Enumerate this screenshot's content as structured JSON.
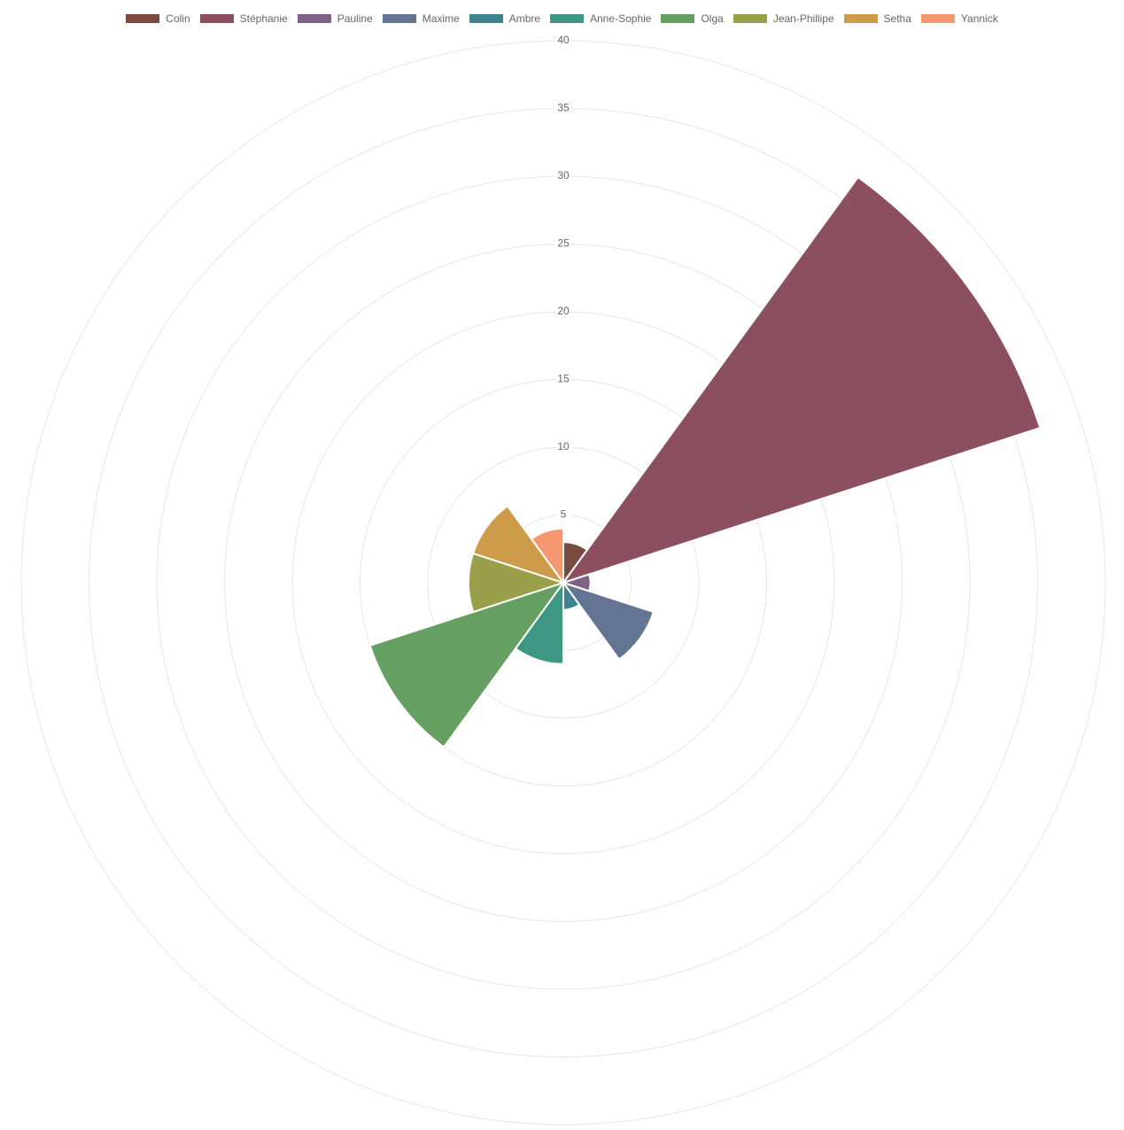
{
  "chart_data": {
    "type": "polarArea",
    "categories": [
      "Colin",
      "Stéphanie",
      "Pauline",
      "Maxime",
      "Ambre",
      "Anne-Sophie",
      "Olga",
      "Jean-Phillipe",
      "Setha",
      "Yannick"
    ],
    "values": [
      3,
      37,
      2,
      7,
      2,
      6,
      15,
      7,
      7,
      4
    ],
    "colors": [
      "#7b4a3f",
      "#8b4f5f",
      "#7d6286",
      "#637592",
      "#3f8290",
      "#3d9782",
      "#65a062",
      "#9aa04a",
      "#cc9c4a",
      "#f59872"
    ],
    "rlim": [
      0,
      40
    ],
    "rticks": [
      5,
      10,
      15,
      20,
      25,
      30,
      35,
      40
    ],
    "grid": true
  }
}
